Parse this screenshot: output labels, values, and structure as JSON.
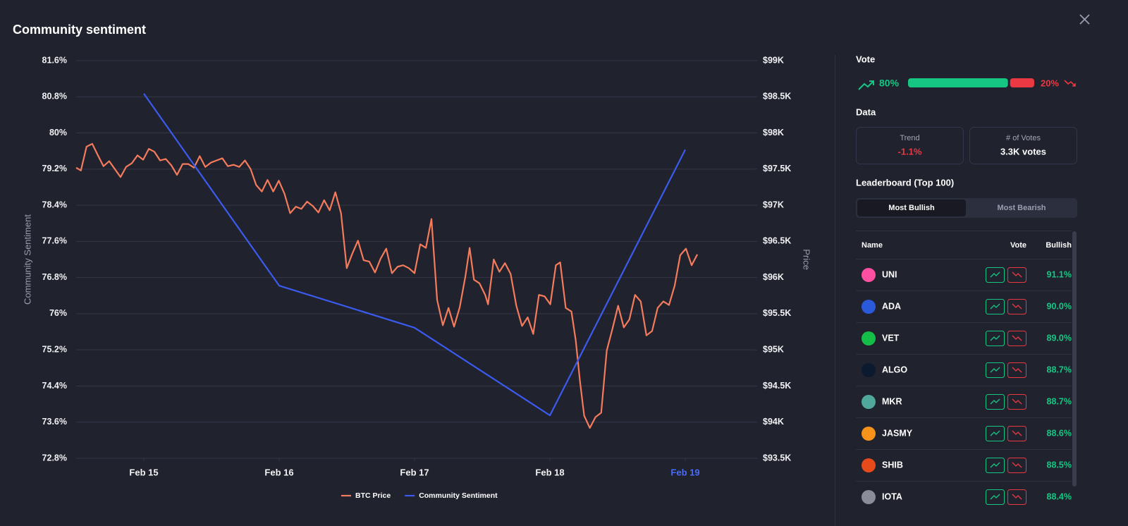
{
  "header": {
    "title": "Community sentiment"
  },
  "chart_data": {
    "type": "line",
    "xlim": [
      14.5,
      19.5
    ],
    "xticks": [
      {
        "value": 15,
        "label": "Feb 15"
      },
      {
        "value": 16,
        "label": "Feb 16"
      },
      {
        "value": 17,
        "label": "Feb 17"
      },
      {
        "value": 18,
        "label": "Feb 18"
      },
      {
        "value": 19,
        "label": "Feb 19"
      }
    ],
    "ylim": [
      72.8,
      81.6
    ],
    "yticks": [
      {
        "value": 81.6,
        "label": "81.6%"
      },
      {
        "value": 80.8,
        "label": "80.8%"
      },
      {
        "value": 80,
        "label": "80%"
      },
      {
        "value": 79.2,
        "label": "79.2%"
      },
      {
        "value": 78.4,
        "label": "78.4%"
      },
      {
        "value": 77.6,
        "label": "77.6%"
      },
      {
        "value": 76.8,
        "label": "76.8%"
      },
      {
        "value": 76,
        "label": "76%"
      },
      {
        "value": 75.2,
        "label": "75.2%"
      },
      {
        "value": 74.4,
        "label": "74.4%"
      },
      {
        "value": 73.6,
        "label": "73.6%"
      },
      {
        "value": 72.8,
        "label": "72.8%"
      }
    ],
    "y2lim": [
      93500,
      99000
    ],
    "y2ticks": [
      {
        "value": 99000,
        "label": "$99K"
      },
      {
        "value": 98500,
        "label": "$98.5K"
      },
      {
        "value": 98000,
        "label": "$98K"
      },
      {
        "value": 97500,
        "label": "$97.5K"
      },
      {
        "value": 97000,
        "label": "$97K"
      },
      {
        "value": 96500,
        "label": "$96.5K"
      },
      {
        "value": 96000,
        "label": "$96K"
      },
      {
        "value": 95500,
        "label": "$95.5K"
      },
      {
        "value": 95000,
        "label": "$95K"
      },
      {
        "value": 94500,
        "label": "$94.5K"
      },
      {
        "value": 94000,
        "label": "$94K"
      },
      {
        "value": 93500,
        "label": "$93.5K"
      }
    ],
    "ylabel": "Community Sentiment",
    "y2label": "Price",
    "grid": true,
    "legend": "bottom",
    "series": [
      {
        "name": "BTC Price",
        "color": "#f47b5c",
        "axis": "y2",
        "x": [
          14.5,
          14.535,
          14.577,
          14.619,
          14.661,
          14.702,
          14.744,
          14.786,
          14.828,
          14.869,
          14.911,
          14.953,
          14.995,
          15.037,
          15.078,
          15.12,
          15.162,
          15.204,
          15.245,
          15.287,
          15.329,
          15.371,
          15.413,
          15.454,
          15.496,
          15.538,
          15.58,
          15.621,
          15.663,
          15.705,
          15.747,
          15.789,
          15.83,
          15.872,
          15.914,
          15.956,
          15.997,
          16.039,
          16.081,
          16.123,
          16.164,
          16.206,
          16.248,
          16.29,
          16.332,
          16.373,
          16.415,
          16.457,
          16.499,
          16.54,
          16.582,
          16.624,
          16.666,
          16.708,
          16.749,
          16.791,
          16.833,
          16.875,
          16.916,
          16.958,
          17.0,
          17.042,
          17.084,
          17.125,
          17.167,
          17.209,
          17.251,
          17.292,
          17.334,
          17.376,
          17.407,
          17.439,
          17.48,
          17.522,
          17.543,
          17.585,
          17.627,
          17.668,
          17.71,
          17.752,
          17.794,
          17.836,
          17.877,
          17.919,
          17.961,
          18.003,
          18.044,
          18.076,
          18.117,
          18.159,
          18.191,
          18.222,
          18.253,
          18.295,
          18.337,
          18.379,
          18.42,
          18.462,
          18.504,
          18.546,
          18.587,
          18.629,
          18.671,
          18.713,
          18.755,
          18.796,
          18.838,
          18.88,
          18.922,
          18.963,
          19.005,
          19.047,
          19.089
        ],
        "values": [
          97520,
          97480,
          97810,
          97850,
          97690,
          97540,
          97610,
          97500,
          97390,
          97530,
          97580,
          97690,
          97630,
          97780,
          97740,
          97620,
          97640,
          97550,
          97420,
          97570,
          97570,
          97520,
          97680,
          97530,
          97590,
          97620,
          97650,
          97540,
          97560,
          97530,
          97620,
          97500,
          97280,
          97190,
          97350,
          97190,
          97340,
          97160,
          96890,
          96980,
          96950,
          97050,
          96990,
          96900,
          97070,
          96930,
          97180,
          96890,
          96130,
          96330,
          96510,
          96240,
          96220,
          96070,
          96260,
          96400,
          96060,
          96150,
          96170,
          96130,
          96060,
          96460,
          96410,
          96810,
          95690,
          95340,
          95580,
          95320,
          95590,
          96020,
          96410,
          95970,
          95920,
          95760,
          95630,
          96250,
          96080,
          96200,
          96050,
          95610,
          95330,
          95450,
          95220,
          95760,
          95740,
          95630,
          96170,
          96210,
          95580,
          95530,
          95130,
          94570,
          94090,
          93920,
          94070,
          94130,
          94990,
          95290,
          95610,
          95310,
          95420,
          95760,
          95670,
          95200,
          95260,
          95580,
          95670,
          95620,
          95890,
          96310,
          96400,
          96170,
          96320
        ]
      },
      {
        "name": "Community Sentiment",
        "color": "#3b5bef",
        "x": [
          15,
          16,
          17,
          18,
          19
        ],
        "values": [
          80.87,
          76.62,
          75.69,
          73.75,
          79.63
        ]
      }
    ]
  },
  "panel": {
    "vote": {
      "title": "Vote",
      "values": [
        80,
        20
      ],
      "value_labels": [
        "80%",
        "20%"
      ],
      "colors": [
        "#16c784",
        "#ea3943"
      ]
    },
    "data": {
      "title": "Data",
      "cards": [
        {
          "label": "Trend",
          "value": "-1.1%"
        },
        {
          "label": "# of Votes",
          "value": "3.3K votes"
        }
      ]
    },
    "leaderboard": {
      "title": "Leaderboard (Top 100)",
      "tabs": [
        "Most Bullish",
        "Most Bearish"
      ],
      "columns": [
        "Name",
        "Vote",
        "Bullish"
      ],
      "rows": [
        [
          "UNI",
          "91.1%"
        ],
        [
          "ADA",
          "90.0%"
        ],
        [
          "VET",
          "89.0%"
        ],
        [
          "ALGO",
          "88.7%"
        ],
        [
          "MKR",
          "88.7%"
        ],
        [
          "JASMY",
          "88.6%"
        ],
        [
          "SHIB",
          "88.5%"
        ],
        [
          "IOTA",
          "88.4%"
        ]
      ]
    }
  }
}
